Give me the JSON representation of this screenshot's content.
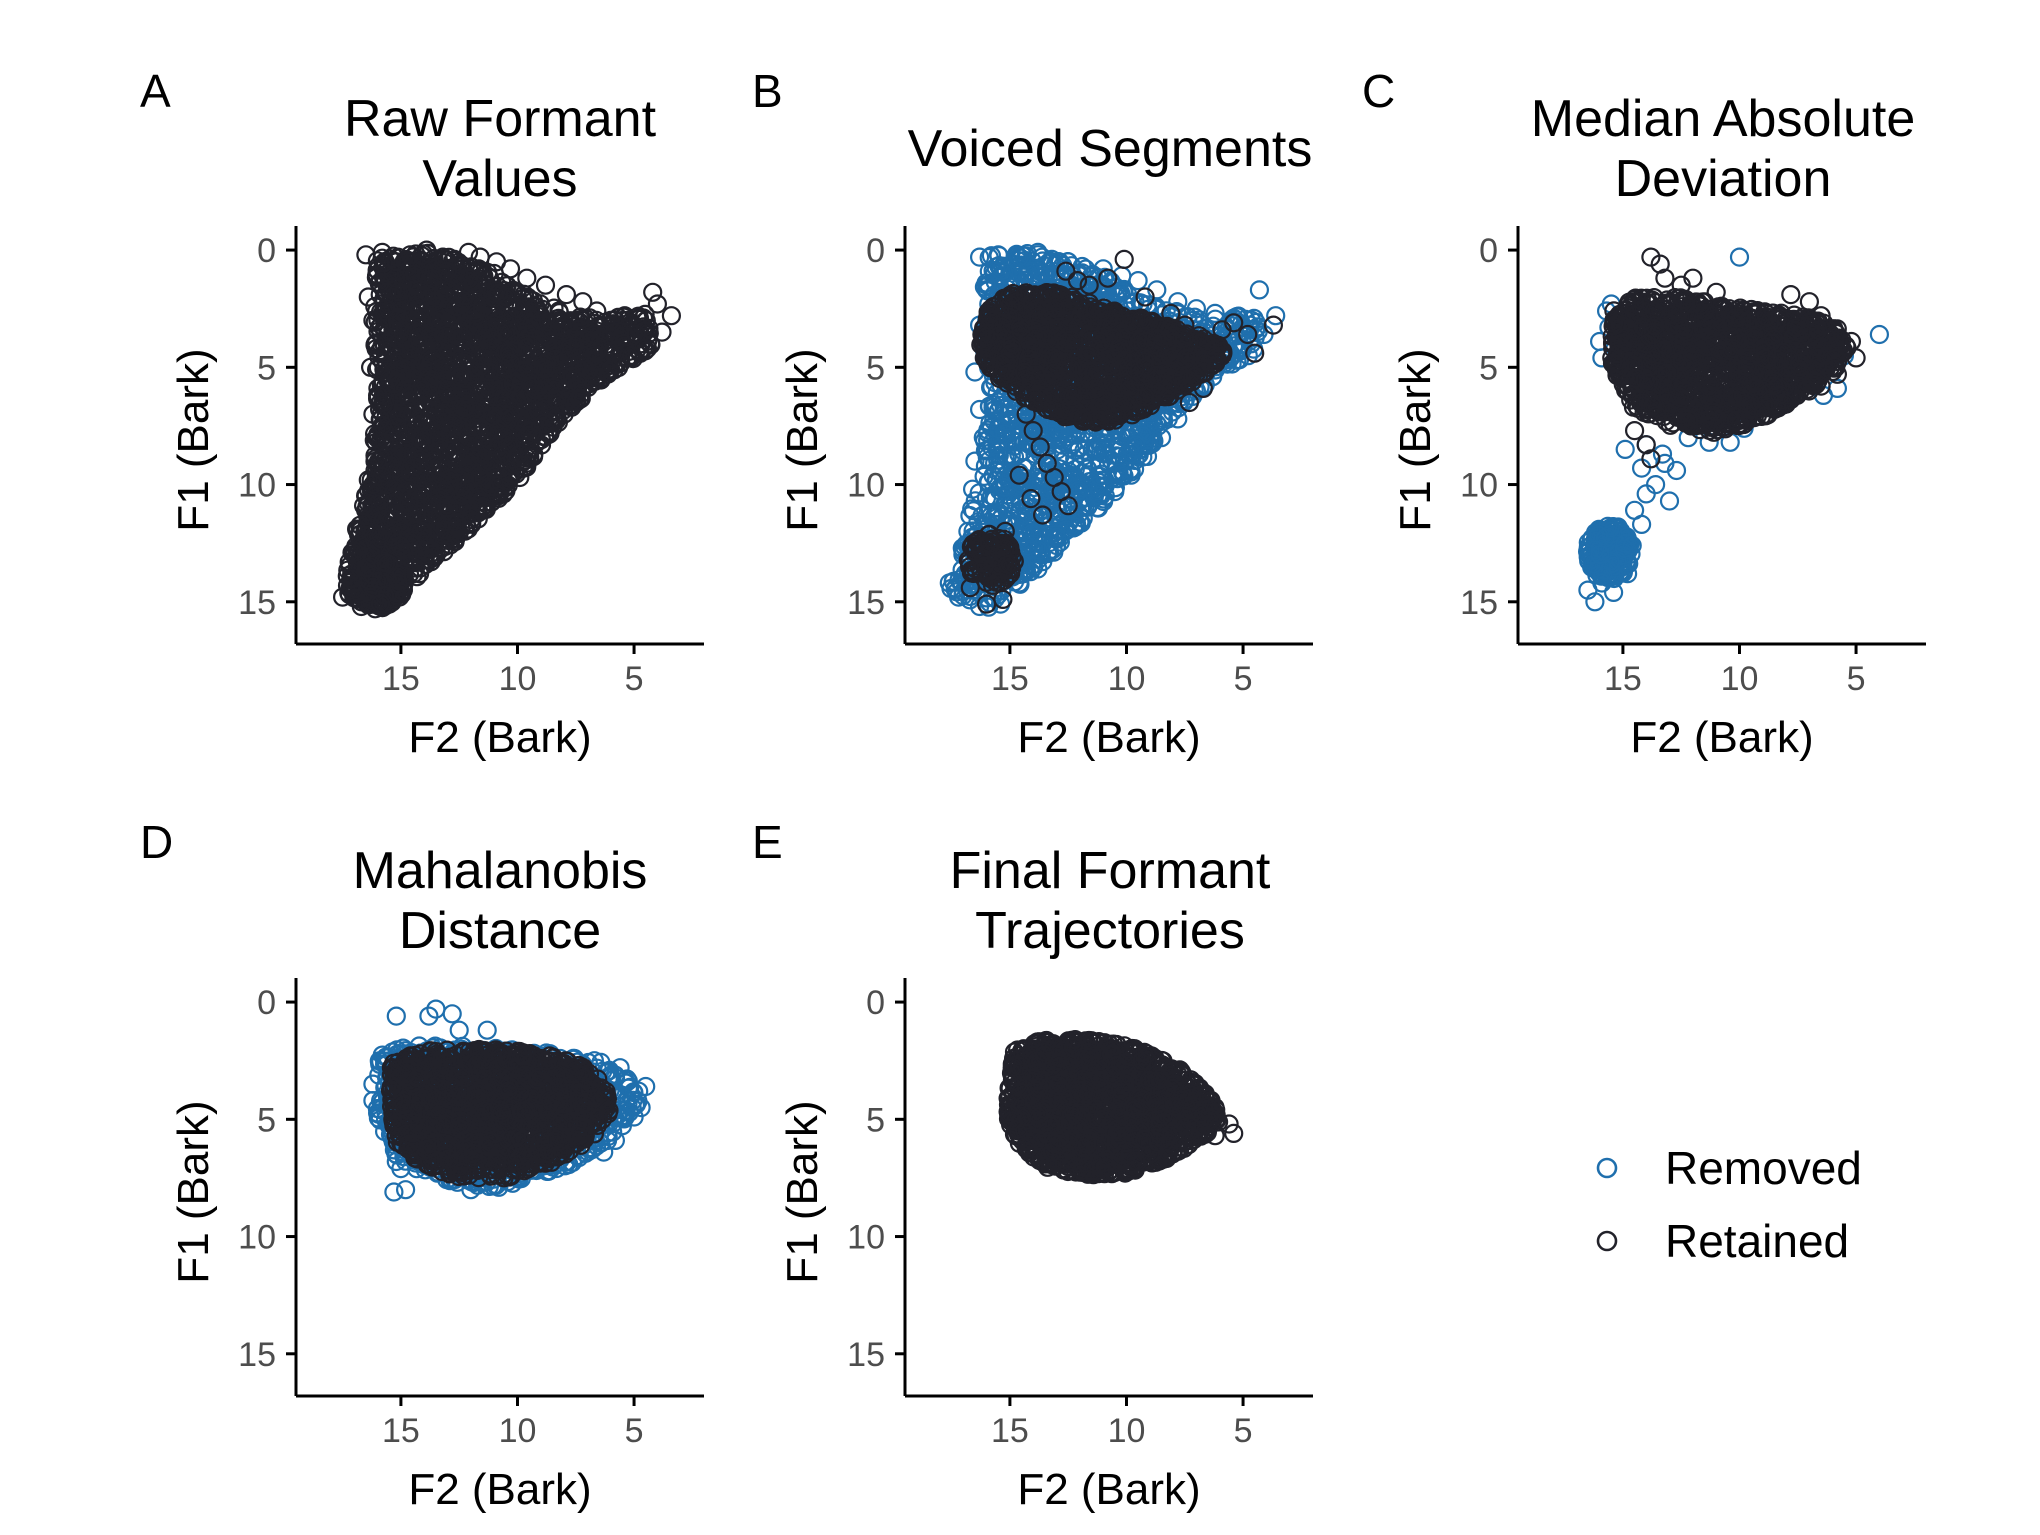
{
  "colors": {
    "removed": "#1f6fad",
    "retained": "#22222a",
    "axis": "#000000",
    "tick_label": "#4d4d4d"
  },
  "legend": {
    "position": "right",
    "items": [
      {
        "label": "Removed",
        "color": "#1f6fad"
      },
      {
        "label": "Retained",
        "color": "#22222a"
      }
    ]
  },
  "chart_data": [
    {
      "panel_label": "A",
      "title_lines": [
        "Raw Formant",
        "Values"
      ],
      "type": "scatter",
      "xlabel": "F2 (Bark)",
      "ylabel": "F1 (Bark)",
      "xlim": [
        19.5,
        2.0
      ],
      "ylim": [
        16.8,
        -0.6
      ],
      "xticks": [
        15,
        10,
        5
      ],
      "yticks": [
        0,
        5,
        10,
        15
      ],
      "x_reversed": true,
      "y_reversed": true,
      "series": [
        {
          "label": "Retained",
          "clouds": [
            {
              "x": [
                [
                  16.2,
                  0.6
                ],
                [
                  15.7,
                  0.8
                ],
                [
                  15.3,
                  0.9
                ],
                [
                  14.8,
                  1.0
                ],
                [
                  14.3,
                  1.2
                ],
                [
                  13.6,
                  1.4
                ],
                [
                  12.9,
                  1.5
                ],
                [
                  12.1,
                  1.9
                ],
                [
                  11.3,
                  2.4
                ],
                [
                  10.4,
                  3.0
                ],
                [
                  9.4,
                  3.3
                ],
                [
                  8.3,
                  3.5
                ],
                [
                  7.2,
                  3.7
                ],
                [
                  6.4,
                  3.9
                ]
              ]
            },
            {
              "x": [
                [
                  17.0,
                  15.0
                ],
                [
                  16.7,
                  13.5
                ],
                [
                  16.2,
                  12.0
                ],
                [
                  15.6,
                  10.0
                ],
                [
                  15.0,
                  8.5
                ],
                [
                  14.4,
                  7.0
                ],
                [
                  13.8,
                  6.5
                ],
                [
                  13.3,
                  6.0
                ],
                [
                  12.8,
                  5.5
                ]
              ],
              "y_spread": 1.2
            }
          ],
          "outliers": [
            [
              16.5,
              0.2
            ],
            [
              15.8,
              0.1
            ],
            [
              15.2,
              0.5
            ],
            [
              14.6,
              0.2
            ],
            [
              13.9,
              0.0
            ],
            [
              13.2,
              0.3
            ],
            [
              12.7,
              0.4
            ],
            [
              12.1,
              0.1
            ],
            [
              11.6,
              0.3
            ],
            [
              10.9,
              0.5
            ],
            [
              10.3,
              0.8
            ],
            [
              9.6,
              1.2
            ],
            [
              8.8,
              1.5
            ],
            [
              7.9,
              1.9
            ],
            [
              7.2,
              2.2
            ],
            [
              6.6,
              2.6
            ],
            [
              6.0,
              3.0
            ],
            [
              5.4,
              2.8
            ],
            [
              4.9,
              3.6
            ],
            [
              4.2,
              1.8
            ],
            [
              4.0,
              2.3
            ],
            [
              3.4,
              2.8
            ],
            [
              3.8,
              3.5
            ],
            [
              4.6,
              4.2
            ],
            [
              5.1,
              4.5
            ],
            [
              6.0,
              5.1
            ],
            [
              6.7,
              5.6
            ],
            [
              7.3,
              6.3
            ],
            [
              8.0,
              7.0
            ],
            [
              8.7,
              7.8
            ],
            [
              9.3,
              8.7
            ],
            [
              9.9,
              9.7
            ],
            [
              10.6,
              10.4
            ],
            [
              11.4,
              11.0
            ],
            [
              12.0,
              11.5
            ],
            [
              12.9,
              12.4
            ],
            [
              13.6,
              13.1
            ],
            [
              14.2,
              13.8
            ],
            [
              14.9,
              14.5
            ],
            [
              15.5,
              15.1
            ],
            [
              16.1,
              15.3
            ],
            [
              16.7,
              15.2
            ],
            [
              17.5,
              14.8
            ],
            [
              17.3,
              13.9
            ],
            [
              17.1,
              12.9
            ],
            [
              16.9,
              11.9
            ],
            [
              16.6,
              10.9
            ],
            [
              16.4,
              9.8
            ],
            [
              16.1,
              8.9
            ],
            [
              15.7,
              8.2
            ],
            [
              16.2,
              7.0
            ],
            [
              16.0,
              6.2
            ],
            [
              16.3,
              5.0
            ],
            [
              16.1,
              4.0
            ],
            [
              16.2,
              3.0
            ],
            [
              16.4,
              2.0
            ],
            [
              15.9,
              1.4
            ],
            [
              9.0,
              3.0
            ],
            [
              8.4,
              4.2
            ],
            [
              8.9,
              5.0
            ],
            [
              10.0,
              2.5
            ],
            [
              11.0,
              1.0
            ],
            [
              13.0,
              0.9
            ]
          ]
        }
      ]
    },
    {
      "panel_label": "B",
      "title_lines": [
        "Voiced Segments"
      ],
      "type": "scatter",
      "xlabel": "F2 (Bark)",
      "ylabel": "F1 (Bark)",
      "xlim": [
        19.5,
        2.0
      ],
      "ylim": [
        16.8,
        -0.6
      ],
      "xticks": [
        15,
        10,
        5
      ],
      "yticks": [
        0,
        5,
        10,
        15
      ],
      "x_reversed": true,
      "y_reversed": true,
      "series": [
        {
          "label": "Removed"
        },
        {
          "label": "Retained"
        }
      ]
    },
    {
      "panel_label": "C",
      "title_lines": [
        "Median Absolute",
        "Deviation"
      ],
      "type": "scatter",
      "xlabel": "F2 (Bark)",
      "ylabel": "F1 (Bark)",
      "xlim": [
        19.5,
        2.0
      ],
      "ylim": [
        16.8,
        -0.6
      ],
      "xticks": [
        15,
        10,
        5
      ],
      "yticks": [
        0,
        5,
        10,
        15
      ],
      "x_reversed": true,
      "y_reversed": true,
      "series": [
        {
          "label": "Removed"
        },
        {
          "label": "Retained"
        }
      ]
    },
    {
      "panel_label": "D",
      "title_lines": [
        "Mahalanobis",
        "Distance"
      ],
      "type": "scatter",
      "xlabel": "F2 (Bark)",
      "ylabel": "F1 (Bark)",
      "xlim": [
        19.5,
        2.0
      ],
      "ylim": [
        16.8,
        -0.6
      ],
      "xticks": [
        15,
        10,
        5
      ],
      "yticks": [
        0,
        5,
        10,
        15
      ],
      "x_reversed": true,
      "y_reversed": true,
      "series": [
        {
          "label": "Removed"
        },
        {
          "label": "Retained"
        }
      ]
    },
    {
      "panel_label": "E",
      "title_lines": [
        "Final Formant",
        "Trajectories"
      ],
      "type": "scatter",
      "xlabel": "F2 (Bark)",
      "ylabel": "F1 (Bark)",
      "xlim": [
        19.5,
        2.0
      ],
      "ylim": [
        16.8,
        -0.6
      ],
      "xticks": [
        15,
        10,
        5
      ],
      "yticks": [
        0,
        5,
        10,
        15
      ],
      "x_reversed": true,
      "y_reversed": true,
      "series": [
        {
          "label": "Retained"
        }
      ]
    }
  ]
}
